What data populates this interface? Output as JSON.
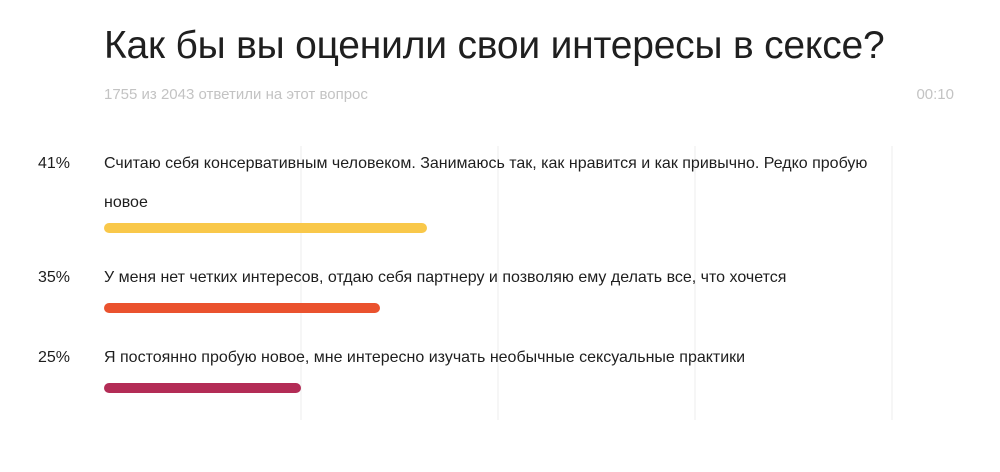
{
  "question": {
    "title": "Как бы вы оценили свои интересы в сексе?",
    "responses": "1755 из 2043 ответили на этот вопрос",
    "timer": "00:10"
  },
  "chart_data": {
    "type": "bar",
    "orientation": "horizontal",
    "title": "Как бы вы оценили свои интересы в сексе?",
    "categories": [
      "Считаю себя консервативным человеком. Занимаюсь так, как нравится и как привычно. Редко пробую новое",
      "У меня нет четких интересов, отдаю себя партнеру и позволяю ему делать все, что хочется",
      "Я постоянно пробую новое, мне интересно изучать необычные сексуальные практики"
    ],
    "values": [
      41,
      35,
      25
    ],
    "value_labels": [
      "41%",
      "35%",
      "25%"
    ],
    "colors": [
      "#f9c84a",
      "#ea522e",
      "#b32c56"
    ],
    "xlim": [
      0,
      100
    ],
    "grid": true,
    "legend": "none"
  }
}
